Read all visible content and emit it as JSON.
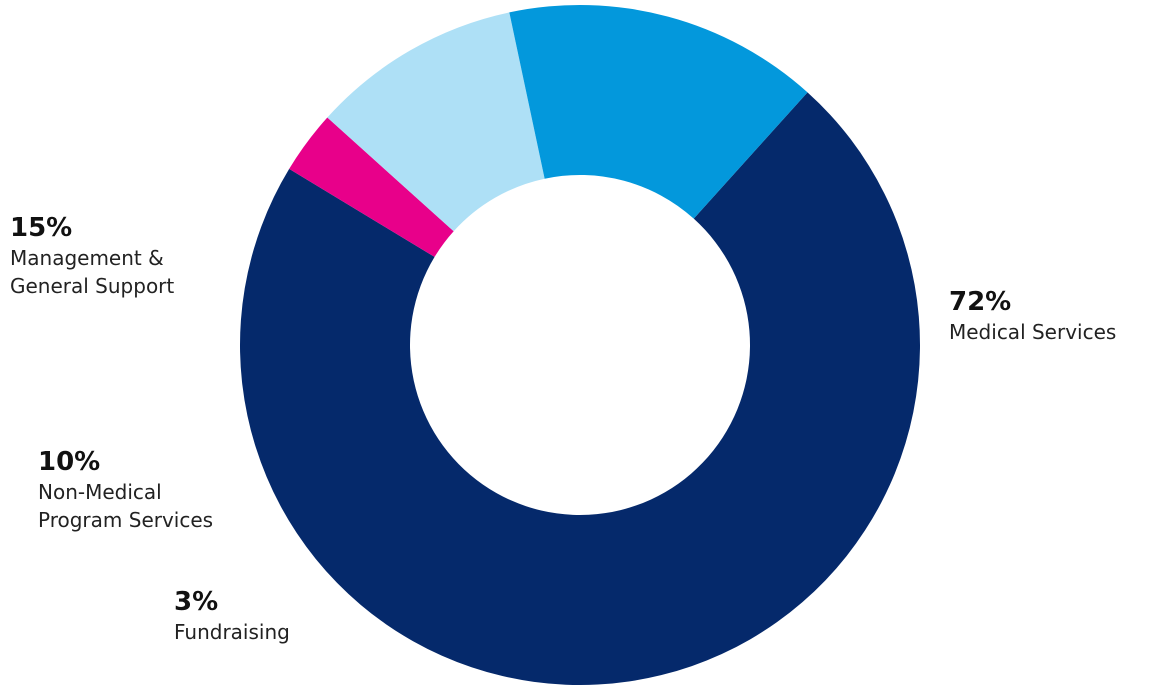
{
  "chart_data": {
    "type": "pie",
    "slices": [
      {
        "label": "Medical Services",
        "percent_label": "72%",
        "value": 72,
        "color": "#05296b"
      },
      {
        "label": "Fundraising",
        "percent_label": "3%",
        "value": 3,
        "color": "#e8008a"
      },
      {
        "label": "Non-Medical\nProgram Services",
        "percent_label": "10%",
        "value": 10,
        "color": "#aee0f6"
      },
      {
        "label": "Management &\nGeneral Support",
        "percent_label": "15%",
        "value": 15,
        "color": "#0398dc"
      }
    ]
  }
}
